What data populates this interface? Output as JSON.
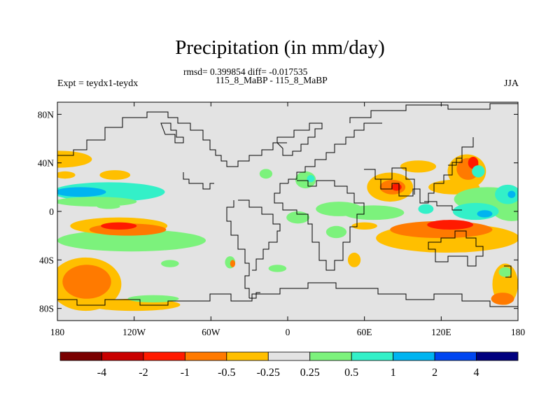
{
  "title": "Precipitation (in mm/day)",
  "stats_line": "rmsd= 0.399854 diff= -0.017535",
  "period_line": "115_8_MaBP - 115_8_MaBP",
  "experiment_label": "Expt = teydx1-teydx",
  "season_label": "JJA",
  "map": {
    "lon_range": [
      -180,
      180
    ],
    "lat_range": [
      -90,
      90
    ],
    "lat_ticks": [
      {
        "value": 80,
        "label": "80N"
      },
      {
        "value": 40,
        "label": "40N"
      },
      {
        "value": 0,
        "label": "0"
      },
      {
        "value": -40,
        "label": "40S"
      },
      {
        "value": -80,
        "label": "80S"
      }
    ],
    "lon_ticks": [
      {
        "value": -180,
        "label": "180"
      },
      {
        "value": -120,
        "label": "120W"
      },
      {
        "value": -60,
        "label": "60W"
      },
      {
        "value": 0,
        "label": "0"
      },
      {
        "value": 60,
        "label": "60E"
      },
      {
        "value": 120,
        "label": "120E"
      },
      {
        "value": 180,
        "label": "180"
      }
    ],
    "background_color": "#e3e3e3"
  },
  "colorbar": {
    "colors": [
      "#7a0000",
      "#c90000",
      "#ff1a00",
      "#ff7a00",
      "#ffbf00",
      "#e3e3e3",
      "#7cf27c",
      "#33f0c8",
      "#00b4f0",
      "#0046f0",
      "#00007f"
    ],
    "labels": [
      "-4",
      "-2",
      "-1",
      "-0.5",
      "-0.25",
      "0.25",
      "0.5",
      "1",
      "2",
      "4"
    ]
  },
  "anomaly_regions": [
    {
      "color": "#ffbf00",
      "lon": -179,
      "lat": 43,
      "rx": 26,
      "ry": 7
    },
    {
      "color": "#ffbf00",
      "lon": -135,
      "lat": 30,
      "rx": 12,
      "ry": 4
    },
    {
      "color": "#ffbf00",
      "lon": -174,
      "lat": 30,
      "rx": 8,
      "ry": 3
    },
    {
      "color": "#33f0c8",
      "lon": -140,
      "lat": 16,
      "rx": 44,
      "ry": 8
    },
    {
      "color": "#00b4f0",
      "lon": -162,
      "lat": 16,
      "rx": 20,
      "ry": 4
    },
    {
      "color": "#7cf27c",
      "lon": -150,
      "lat": 8,
      "rx": 32,
      "ry": 4
    },
    {
      "color": "#7cf27c",
      "lon": -122,
      "lat": -24,
      "rx": 58,
      "ry": 9
    },
    {
      "color": "#ffbf00",
      "lon": -132,
      "lat": -12,
      "rx": 38,
      "ry": 7
    },
    {
      "color": "#ff7a00",
      "lon": -125,
      "lat": -15,
      "rx": 30,
      "ry": 5
    },
    {
      "color": "#ff1a00",
      "lon": -132,
      "lat": -12,
      "rx": 14,
      "ry": 3
    },
    {
      "color": "#7cf27c",
      "lon": -45,
      "lat": -42,
      "rx": 4,
      "ry": 5
    },
    {
      "color": "#ff7a00",
      "lon": -43,
      "lat": -43,
      "rx": 2,
      "ry": 3
    },
    {
      "color": "#7cf27c",
      "lon": -92,
      "lat": -43,
      "rx": 7,
      "ry": 3
    },
    {
      "color": "#7cf27c",
      "lon": -8,
      "lat": -47,
      "rx": 7,
      "ry": 3
    },
    {
      "color": "#ffbf00",
      "lon": -158,
      "lat": -60,
      "rx": 28,
      "ry": 22
    },
    {
      "color": "#ff7a00",
      "lon": -157,
      "lat": -58,
      "rx": 19,
      "ry": 14
    },
    {
      "color": "#ffbf00",
      "lon": -120,
      "lat": -77,
      "rx": 36,
      "ry": 5
    },
    {
      "color": "#7cf27c",
      "lon": -105,
      "lat": -72,
      "rx": 20,
      "ry": 3
    },
    {
      "color": "#7cf27c",
      "lon": -140,
      "lat": 4,
      "rx": 9,
      "ry": 2
    },
    {
      "color": "#7cf27c",
      "lon": -17,
      "lat": 31,
      "rx": 5,
      "ry": 4
    },
    {
      "color": "#7cf27c",
      "lon": 14,
      "lat": 26,
      "rx": 8,
      "ry": 7
    },
    {
      "color": "#33f0c8",
      "lon": 18,
      "lat": 27,
      "rx": 3,
      "ry": 3
    },
    {
      "color": "#7cf27c",
      "lon": 8,
      "lat": -5,
      "rx": 9,
      "ry": 5
    },
    {
      "color": "#7cf27c",
      "lon": 38,
      "lat": -17,
      "rx": 8,
      "ry": 5
    },
    {
      "color": "#7cf27c",
      "lon": 40,
      "lat": 2,
      "rx": 18,
      "ry": 6
    },
    {
      "color": "#ffbf00",
      "lon": 52,
      "lat": -40,
      "rx": 5,
      "ry": 6
    },
    {
      "color": "#7cf27c",
      "lon": 67,
      "lat": -1,
      "rx": 24,
      "ry": 6
    },
    {
      "color": "#ffbf00",
      "lon": 60,
      "lat": -12,
      "rx": 10,
      "ry": 3
    },
    {
      "color": "#ffbf00",
      "lon": 80,
      "lat": 20,
      "rx": 18,
      "ry": 12
    },
    {
      "color": "#ff7a00",
      "lon": 82,
      "lat": 20,
      "rx": 10,
      "ry": 6
    },
    {
      "color": "#ff1a00",
      "lon": 85,
      "lat": 20,
      "rx": 4,
      "ry": 3
    },
    {
      "color": "#ffbf00",
      "lon": 102,
      "lat": 37,
      "rx": 14,
      "ry": 5
    },
    {
      "color": "#ffbf00",
      "lon": 140,
      "lat": 33,
      "rx": 15,
      "ry": 14
    },
    {
      "color": "#ff7a00",
      "lon": 141,
      "lat": 35,
      "rx": 9,
      "ry": 9
    },
    {
      "color": "#ff1a00",
      "lon": 145,
      "lat": 40,
      "rx": 4,
      "ry": 5
    },
    {
      "color": "#33f0c8",
      "lon": 149,
      "lat": 33,
      "rx": 5,
      "ry": 5
    },
    {
      "color": "#ffbf00",
      "lon": 130,
      "lat": 20,
      "rx": 20,
      "ry": 6
    },
    {
      "color": "#7cf27c",
      "lon": 156,
      "lat": 10,
      "rx": 26,
      "ry": 10
    },
    {
      "color": "#7cf27c",
      "lon": 175,
      "lat": 3,
      "rx": 16,
      "ry": 11
    },
    {
      "color": "#33f0c8",
      "lon": 147,
      "lat": 0,
      "rx": 18,
      "ry": 7
    },
    {
      "color": "#00b4f0",
      "lon": 154,
      "lat": -2,
      "rx": 6,
      "ry": 3
    },
    {
      "color": "#33f0c8",
      "lon": 172,
      "lat": 14,
      "rx": 10,
      "ry": 8
    },
    {
      "color": "#00b4f0",
      "lon": 175,
      "lat": 14,
      "rx": 3,
      "ry": 3
    },
    {
      "color": "#33f0c8",
      "lon": 108,
      "lat": 2,
      "rx": 6,
      "ry": 4
    },
    {
      "color": "#ffbf00",
      "lon": 125,
      "lat": -22,
      "rx": 56,
      "ry": 12
    },
    {
      "color": "#ff7a00",
      "lon": 120,
      "lat": -15,
      "rx": 40,
      "ry": 7
    },
    {
      "color": "#ff1a00",
      "lon": 127,
      "lat": -11,
      "rx": 18,
      "ry": 4
    },
    {
      "color": "#ffbf00",
      "lon": 94,
      "lat": -27,
      "rx": 10,
      "ry": 4
    },
    {
      "color": "#ffbf00",
      "lon": 170,
      "lat": -60,
      "rx": 10,
      "ry": 17
    },
    {
      "color": "#ff7a00",
      "lon": 168,
      "lat": -72,
      "rx": 9,
      "ry": 5
    },
    {
      "color": "#7cf27c",
      "lon": 170,
      "lat": -50,
      "rx": 5,
      "ry": 4
    }
  ]
}
